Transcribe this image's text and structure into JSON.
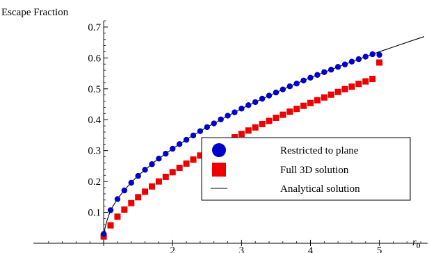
{
  "chart_data": {
    "type": "scatter",
    "ylabel": "Escape Fraction",
    "xlabel": "r",
    "xlabel_sub": "0",
    "xlim": [
      0,
      5.7
    ],
    "ylim": [
      0,
      0.72
    ],
    "x_ticks": [
      1,
      2,
      3,
      4,
      5
    ],
    "x_tick_labels": [
      "",
      "2",
      "3",
      "4",
      "5"
    ],
    "y_ticks": [
      0.1,
      0.2,
      0.3,
      0.4,
      0.5,
      0.6,
      0.7
    ],
    "y_tick_labels": [
      "0.1",
      "0.2",
      "0.3",
      "0.4",
      "0.5",
      "0.6",
      "0.7"
    ],
    "legend_position": "bottom-right",
    "series": [
      {
        "name": "Restricted to plane",
        "marker": "circle",
        "color": "#0000cc",
        "x": [
          1.0,
          1.1,
          1.2,
          1.3,
          1.4,
          1.5,
          1.6,
          1.7,
          1.8,
          1.9,
          2.0,
          2.1,
          2.2,
          2.3,
          2.4,
          2.5,
          2.6,
          2.7,
          2.8,
          2.9,
          3.0,
          3.1,
          3.2,
          3.3,
          3.4,
          3.5,
          3.6,
          3.7,
          3.8,
          3.9,
          4.0,
          4.1,
          4.2,
          4.3,
          4.4,
          4.5,
          4.6,
          4.7,
          4.8,
          4.9,
          5.0
        ],
        "y": [
          0.03,
          0.107,
          0.143,
          0.171,
          0.196,
          0.218,
          0.238,
          0.256,
          0.274,
          0.29,
          0.306,
          0.321,
          0.335,
          0.349,
          0.363,
          0.376,
          0.388,
          0.401,
          0.413,
          0.424,
          0.436,
          0.447,
          0.457,
          0.468,
          0.478,
          0.488,
          0.498,
          0.508,
          0.517,
          0.527,
          0.536,
          0.545,
          0.554,
          0.562,
          0.571,
          0.579,
          0.588,
          0.596,
          0.604,
          0.612,
          0.61
        ]
      },
      {
        "name": "Full 3D solution",
        "marker": "square",
        "color": "#ee0000",
        "x": [
          1.0,
          1.1,
          1.2,
          1.3,
          1.4,
          1.5,
          1.6,
          1.7,
          1.8,
          1.9,
          2.0,
          2.1,
          2.2,
          2.3,
          2.4,
          2.5,
          2.6,
          2.7,
          2.8,
          2.9,
          3.0,
          3.1,
          3.2,
          3.3,
          3.4,
          3.5,
          3.6,
          3.7,
          3.8,
          3.9,
          4.0,
          4.1,
          4.2,
          4.3,
          4.4,
          4.5,
          4.6,
          4.7,
          4.8,
          4.9,
          5.0
        ],
        "y": [
          0.022,
          0.058,
          0.086,
          0.109,
          0.13,
          0.149,
          0.167,
          0.184,
          0.2,
          0.215,
          0.23,
          0.244,
          0.258,
          0.271,
          0.284,
          0.296,
          0.308,
          0.32,
          0.331,
          0.343,
          0.354,
          0.365,
          0.375,
          0.386,
          0.396,
          0.406,
          0.416,
          0.426,
          0.435,
          0.445,
          0.454,
          0.463,
          0.472,
          0.481,
          0.49,
          0.499,
          0.507,
          0.516,
          0.524,
          0.532,
          0.585
        ]
      },
      {
        "name": "Analytical solution",
        "marker": "line",
        "color": "#000000",
        "x": [
          1.0,
          1.02,
          1.05,
          1.1,
          1.2,
          1.3,
          1.4,
          1.5,
          1.75,
          2.0,
          2.25,
          2.5,
          2.75,
          3.0,
          3.25,
          3.5,
          3.75,
          4.0,
          4.25,
          4.5,
          4.75,
          5.0,
          5.25,
          5.5,
          5.65
        ],
        "y": [
          0.025,
          0.05,
          0.075,
          0.107,
          0.144,
          0.172,
          0.197,
          0.219,
          0.266,
          0.306,
          0.343,
          0.376,
          0.406,
          0.436,
          0.462,
          0.488,
          0.513,
          0.536,
          0.558,
          0.579,
          0.6,
          0.62,
          0.639,
          0.658,
          0.669
        ]
      }
    ]
  }
}
